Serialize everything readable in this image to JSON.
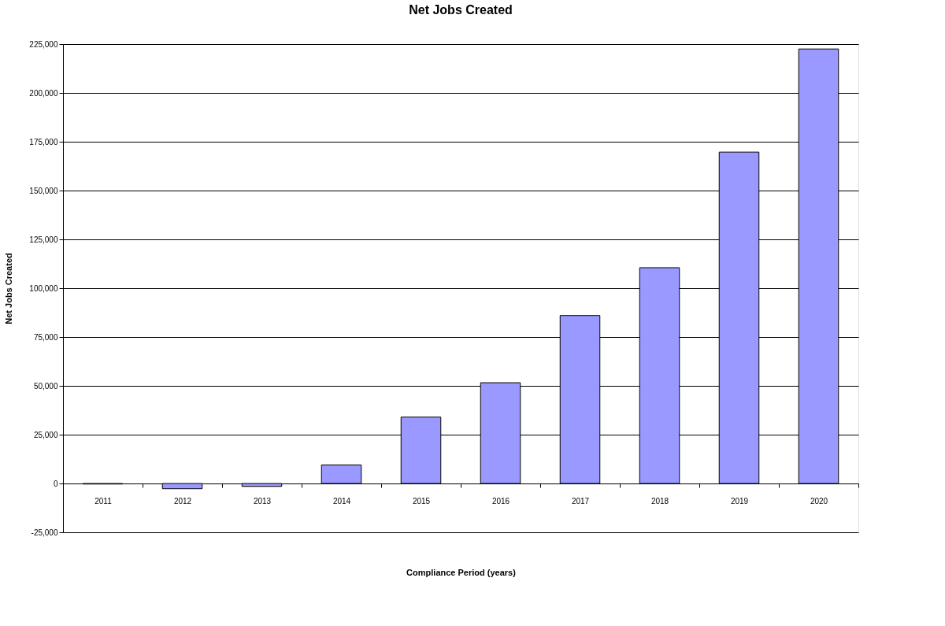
{
  "chart_data": {
    "type": "bar",
    "title": "Net Jobs Created",
    "xlabel": "Compliance Period (years)",
    "ylabel": "Net Jobs Created",
    "categories": [
      "2011",
      "2012",
      "2013",
      "2014",
      "2015",
      "2016",
      "2017",
      "2018",
      "2019",
      "2020"
    ],
    "series": [
      {
        "color": "#9999ff",
        "values": [
          -300,
          -2700,
          -1500,
          9500,
          34000,
          51600,
          86000,
          110500,
          169700,
          222500
        ]
      }
    ],
    "ylim": [
      -25000,
      225000
    ],
    "yticks": [
      {
        "value": -25000,
        "label": "-25,000"
      },
      0,
      {
        "value": 25000,
        "label": "25,000"
      },
      {
        "value": 50000,
        "label": "50,000"
      },
      {
        "value": 75000,
        "label": "75,000"
      },
      {
        "value": 100000,
        "label": "100,000"
      },
      {
        "value": 125000,
        "label": "125,000"
      },
      {
        "value": 150000,
        "label": "150,000"
      },
      {
        "value": 175000,
        "label": "175,000"
      },
      {
        "value": 200000,
        "label": "200,000"
      },
      {
        "value": 225000,
        "label": "225,000"
      }
    ],
    "grid": "y",
    "legend": false
  }
}
